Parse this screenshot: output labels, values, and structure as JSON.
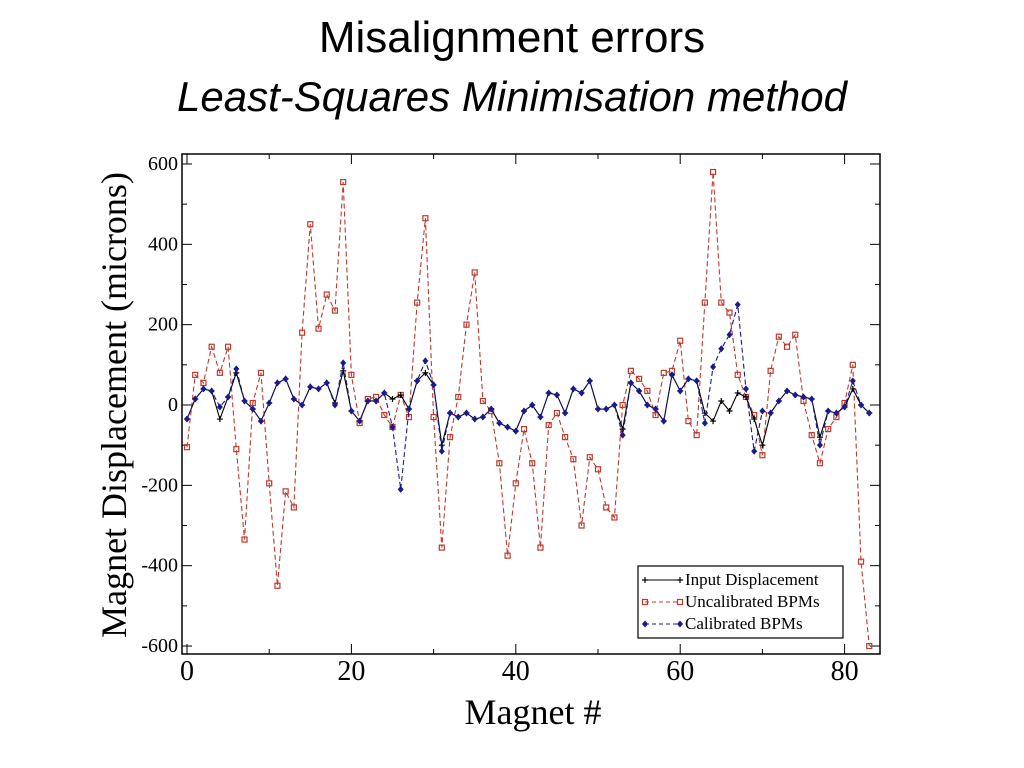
{
  "slide": {
    "title": "Misalignment errors",
    "subtitle": "Least-Squares Minimisation method"
  },
  "chart_data": {
    "type": "line",
    "xlabel": "Magnet #",
    "ylabel": "Magnet Displacement (microns)",
    "xlim": [
      0,
      84.5
    ],
    "ylim": [
      -600,
      600
    ],
    "xticks": [
      "0",
      "20",
      "40",
      "60",
      "80"
    ],
    "yticks": [
      "600",
      "400",
      "200",
      "0",
      "-200",
      "-400",
      "-600"
    ],
    "legend_position": "bottom-right",
    "series": [
      {
        "name": "Input Displacement",
        "color": "#000000",
        "marker": "plus",
        "dash": "solid",
        "values": [
          -35,
          15,
          40,
          35,
          -35,
          20,
          80,
          10,
          -10,
          -40,
          5,
          55,
          65,
          15,
          0,
          45,
          40,
          55,
          5,
          85,
          -15,
          -40,
          10,
          10,
          30,
          15,
          25,
          -10,
          60,
          80,
          50,
          -100,
          -20,
          -30,
          -20,
          -35,
          -30,
          -10,
          -45,
          -55,
          -65,
          -15,
          0,
          -30,
          30,
          25,
          -20,
          40,
          30,
          60,
          -10,
          -10,
          0,
          -60,
          55,
          35,
          0,
          -10,
          -40,
          75,
          35,
          65,
          60,
          -20,
          -40,
          10,
          -15,
          30,
          20,
          -35,
          -100,
          -20,
          10,
          35,
          25,
          20,
          15,
          -80,
          -15,
          -20,
          -5,
          40,
          0,
          -20
        ]
      },
      {
        "name": "Uncalibrated BPMs",
        "color": "#c0392b",
        "marker": "square",
        "dash": "dashed",
        "values": [
          -105,
          75,
          55,
          145,
          80,
          145,
          -110,
          -335,
          5,
          80,
          -195,
          -450,
          -215,
          -255,
          180,
          450,
          190,
          275,
          235,
          555,
          75,
          -45,
          15,
          20,
          -25,
          -55,
          25,
          -30,
          255,
          465,
          -30,
          -355,
          -80,
          20,
          200,
          330,
          10,
          -15,
          -145,
          -375,
          -195,
          -60,
          -145,
          -355,
          -50,
          -20,
          -80,
          -135,
          -300,
          -130,
          -160,
          -255,
          -280,
          0,
          85,
          65,
          35,
          -25,
          80,
          85,
          160,
          -40,
          -75,
          255,
          580,
          255,
          230,
          75,
          20,
          -25,
          -125,
          85,
          170,
          145,
          175,
          10,
          -75,
          -145,
          -60,
          -30,
          5,
          100,
          -390,
          -600
        ]
      },
      {
        "name": "Calibrated BPMs",
        "color": "#1a1a8c",
        "marker": "diamond",
        "dash": "dashed",
        "values": [
          -35,
          15,
          40,
          35,
          -5,
          20,
          90,
          10,
          -10,
          -40,
          5,
          55,
          65,
          15,
          0,
          45,
          40,
          55,
          0,
          105,
          -15,
          -40,
          10,
          10,
          30,
          -55,
          -210,
          -10,
          60,
          110,
          50,
          -115,
          -20,
          -30,
          -20,
          -35,
          -30,
          -10,
          -45,
          -55,
          -65,
          -15,
          0,
          -30,
          30,
          25,
          -20,
          40,
          30,
          60,
          -10,
          -10,
          0,
          -75,
          55,
          35,
          0,
          -10,
          -40,
          75,
          35,
          65,
          60,
          -45,
          95,
          140,
          175,
          250,
          40,
          -115,
          -15,
          -20,
          10,
          35,
          25,
          20,
          15,
          -100,
          -15,
          -20,
          -5,
          60,
          0,
          -20
        ]
      }
    ]
  }
}
